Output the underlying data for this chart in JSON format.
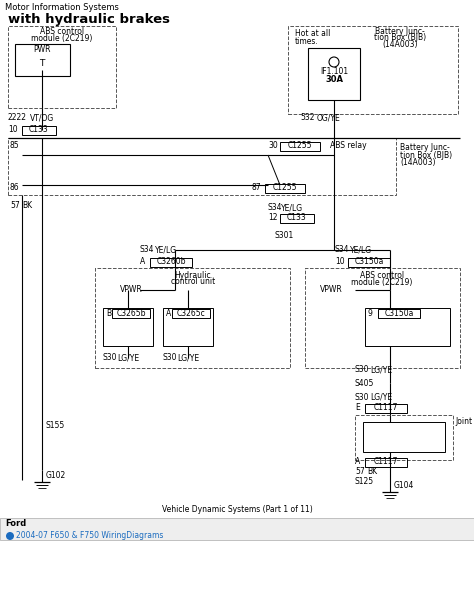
{
  "bg_color": "#ffffff",
  "title_main": "Motor Information Systems",
  "title_sub": "with hydraulic brakes",
  "footer_text": "Vehicle Dynamic Systems (Part 1 of 11)",
  "footer_brand": "Ford",
  "footer_sub": "2004-07 F650 & F750 WiringDiagrams",
  "fig_width": 4.74,
  "fig_height": 5.95,
  "dpi": 100
}
